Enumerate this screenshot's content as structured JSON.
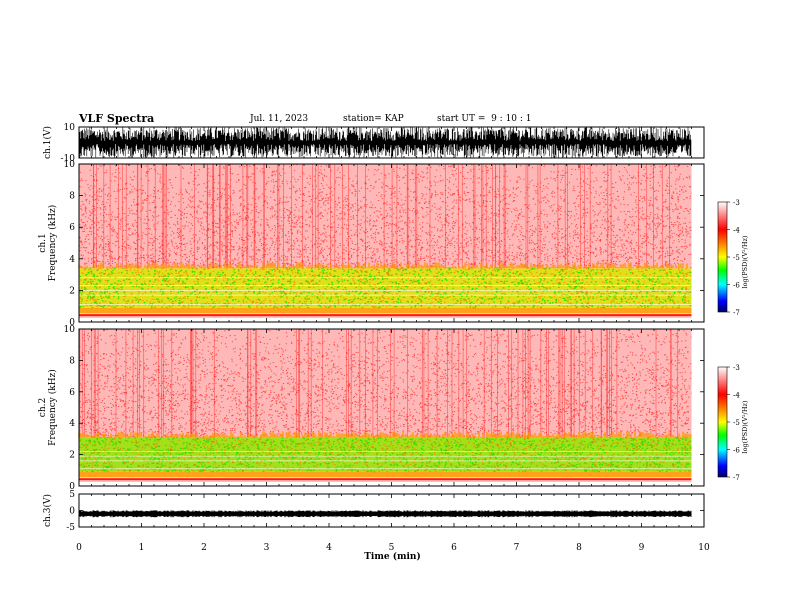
{
  "header": {
    "title": "VLF Spectra",
    "date": "Jul. 11, 2023",
    "station": "station= KAP",
    "start": "start UT =  9 : 10 : 1"
  },
  "chart_data": [
    {
      "type": "line",
      "panel": "ch1-waveform",
      "ylabel": "ch.1(V)",
      "ylim": [
        -10,
        10
      ],
      "yticks": [
        "10",
        "-10"
      ],
      "x_range_min": [
        0,
        9.8
      ],
      "description_values": {
        "amplitude_V_typical": [
          -10,
          10
        ]
      },
      "colors": {
        "line": "#000000"
      }
    },
    {
      "type": "heatmap",
      "panel": "ch1-spectrogram",
      "ylabel": "ch.1\nFrequency (kHz)",
      "ylim": [
        0,
        10
      ],
      "yticks": [
        "0",
        "2",
        "4",
        "6",
        "8",
        "10"
      ],
      "bands_kHz": [
        {
          "from": 0.3,
          "to": 0.5,
          "level": -3.6
        },
        {
          "from": 0.5,
          "to": 0.9,
          "level": -3.8
        },
        {
          "from": 0.9,
          "to": 3.4,
          "level": -4.5
        },
        {
          "from": 3.4,
          "to": 10,
          "level": -3.2
        }
      ],
      "lines_kHz": [
        0.35,
        0.55,
        1.1,
        1.7,
        2.0,
        2.3,
        2.8
      ],
      "colorbar": {
        "label": "log(PSD)(V²/Hz)",
        "range": [
          -7,
          -3
        ],
        "ticks": [
          "-3",
          "-4",
          "-5",
          "-6",
          "-7"
        ]
      }
    },
    {
      "type": "heatmap",
      "panel": "ch2-spectrogram",
      "ylabel": "ch.2\nFrequency (kHz)",
      "ylim": [
        0,
        10
      ],
      "yticks": [
        "0",
        "2",
        "4",
        "6",
        "8",
        "10"
      ],
      "bands_kHz": [
        {
          "from": 0.3,
          "to": 0.5,
          "level": -3.6
        },
        {
          "from": 0.5,
          "to": 0.9,
          "level": -3.8
        },
        {
          "from": 0.9,
          "to": 3.1,
          "level": -4.8
        },
        {
          "from": 3.1,
          "to": 10,
          "level": -3.2
        }
      ],
      "lines_kHz": [
        0.35,
        0.55,
        1.1,
        1.6,
        1.9,
        2.2
      ],
      "colorbar": {
        "label": "log(PSD)(V²/Hz)",
        "range": [
          -7,
          -3
        ],
        "ticks": [
          "-3",
          "-4",
          "-5",
          "-6",
          "-7"
        ]
      }
    },
    {
      "type": "line",
      "panel": "ch3-waveform",
      "ylabel": "ch.3(V)",
      "ylim": [
        -5,
        5
      ],
      "yticks": [
        "5",
        "0",
        "-5"
      ],
      "level_V": -1.0,
      "colors": {
        "line": "#000000"
      }
    }
  ],
  "xaxis": {
    "label": "Time (min)",
    "range": [
      0,
      10
    ],
    "ticks": [
      "0",
      "1",
      "2",
      "3",
      "4",
      "5",
      "6",
      "7",
      "8",
      "9",
      "10"
    ],
    "data_end_min": 9.8
  },
  "colorscale": [
    "#ffffff",
    "#ff0000",
    "#ffff00",
    "#00ff00",
    "#00ffff",
    "#0000ff",
    "#000066"
  ]
}
